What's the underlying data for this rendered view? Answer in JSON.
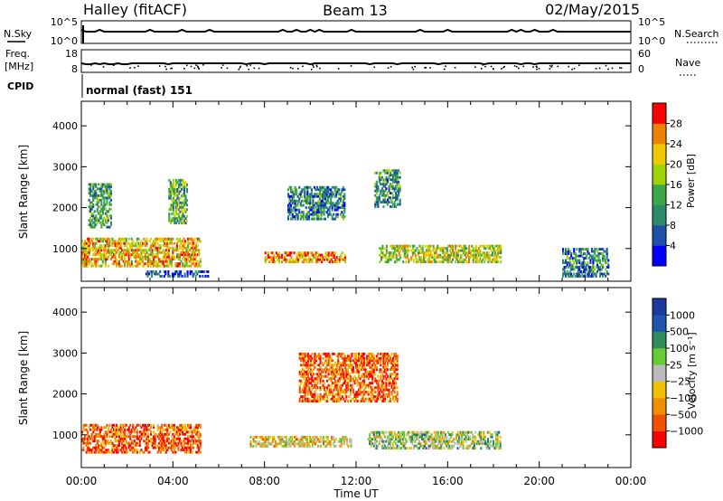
{
  "header": {
    "radar": "Halley (fitACF)",
    "beam": "Beam 13",
    "date": "02/May/2015"
  },
  "top_panels": {
    "nsky_label": "N.Sky",
    "nsky_ticks": [
      "10^5",
      "10^0"
    ],
    "nsearch_label": "N.Search",
    "nsearch_ticks": [
      "10^5",
      "10^0"
    ],
    "freq_label_1": "Freq.",
    "freq_label_2": "[MHz]",
    "freq_ticks": [
      "18",
      "8"
    ],
    "nave_label": "Nave",
    "nave_ticks": [
      "60",
      "0"
    ],
    "cpid_label": "CPID",
    "cpid_text": "normal (fast) 151"
  },
  "chart_data": [
    {
      "type": "heatmap",
      "name": "power",
      "xlabel": "Time UT",
      "ylabel": "Slant Range [km]",
      "xlim": [
        0,
        24
      ],
      "x_ticks": [
        "00:00",
        "04:00",
        "08:00",
        "12:00",
        "16:00",
        "20:00",
        "00:00"
      ],
      "ylim": [
        200,
        4600
      ],
      "y_ticks": [
        1000,
        2000,
        3000,
        4000
      ],
      "colorbar_label": "Power [dB]",
      "colorbar_ticks": [
        "28",
        "24",
        "20",
        "16",
        "12",
        "8",
        "4"
      ],
      "colormap": [
        "#0000ff",
        "#1f4fa8",
        "#2b8a6a",
        "#3aa84a",
        "#9fd400",
        "#f0c800",
        "#f08000",
        "#ff0000"
      ],
      "features": [
        {
          "t0": 0.0,
          "t1": 5.2,
          "r0": 550,
          "r1": 1250,
          "level": 0.7
        },
        {
          "t0": 0.3,
          "t1": 1.3,
          "r0": 1500,
          "r1": 2600,
          "level": 0.4
        },
        {
          "t0": 3.8,
          "t1": 4.6,
          "r0": 1600,
          "r1": 2700,
          "level": 0.45
        },
        {
          "t0": 2.8,
          "t1": 5.5,
          "r0": 300,
          "r1": 450,
          "level": 0.2
        },
        {
          "t0": 8.0,
          "t1": 11.5,
          "r0": 650,
          "r1": 900,
          "level": 0.75
        },
        {
          "t0": 9.0,
          "t1": 11.5,
          "r0": 1700,
          "r1": 2500,
          "level": 0.3
        },
        {
          "t0": 13.0,
          "t1": 18.3,
          "r0": 650,
          "r1": 1050,
          "level": 0.6
        },
        {
          "t0": 12.8,
          "t1": 13.9,
          "r0": 2000,
          "r1": 2900,
          "level": 0.35
        },
        {
          "t0": 21.0,
          "t1": 23.0,
          "r0": 300,
          "r1": 1000,
          "level": 0.3
        }
      ]
    },
    {
      "type": "heatmap",
      "name": "velocity",
      "xlabel": "Time UT",
      "ylabel": "Slant Range [km]",
      "xlim": [
        0,
        24
      ],
      "x_ticks": [
        "00:00",
        "04:00",
        "08:00",
        "12:00",
        "16:00",
        "20:00",
        "00:00"
      ],
      "ylim": [
        200,
        4600
      ],
      "y_ticks": [
        1000,
        2000,
        3000,
        4000
      ],
      "colorbar_label": "Velocity [m s⁻¹]",
      "colorbar_ticks": [
        "1000",
        "500",
        "100",
        "25",
        "−25",
        "−100",
        "−500",
        "−1000"
      ],
      "colormap": [
        "#ff0000",
        "#f05000",
        "#f09000",
        "#f0c000",
        "#bbbbbb",
        "#66cc33",
        "#2f8c5c",
        "#1f55b0",
        "#1a3aa0"
      ],
      "features": [
        {
          "t0": 0.0,
          "t1": 5.2,
          "r0": 550,
          "r1": 1250,
          "level": 0.2
        },
        {
          "t0": 7.3,
          "t1": 11.8,
          "r0": 700,
          "r1": 950,
          "level": 0.4
        },
        {
          "t0": 12.5,
          "t1": 18.3,
          "r0": 650,
          "r1": 1050,
          "level": 0.55
        },
        {
          "t0": 9.5,
          "t1": 13.8,
          "r0": 1800,
          "r1": 3000,
          "level": 0.2
        }
      ]
    }
  ]
}
